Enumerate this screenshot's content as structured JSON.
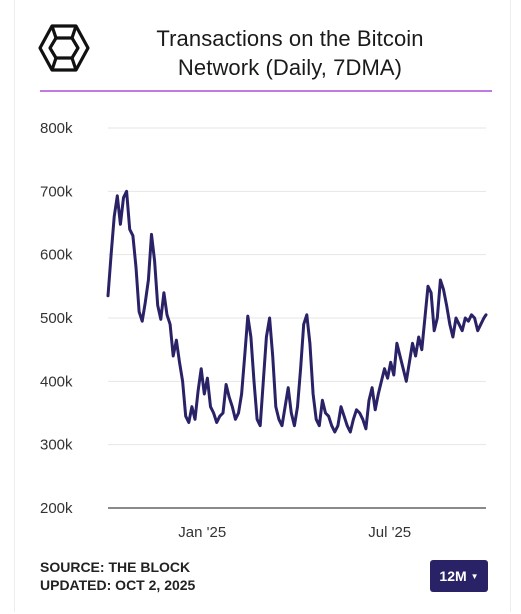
{
  "header": {
    "logo_icon": "the-block-cube-logo",
    "title_line1": "Transactions on the Bitcoin",
    "title_line2": "Network (Daily, 7DMA)"
  },
  "footer": {
    "source": "SOURCE: THE BLOCK",
    "updated": "UPDATED: OCT 2, 2025"
  },
  "range_selector": {
    "label": "12M",
    "caret_icon": "caret-down-icon"
  },
  "colors": {
    "line": "#2a2266",
    "accent": "#c07be0",
    "button": "#2a2266"
  },
  "chart_data": {
    "type": "line",
    "y_tick_labels": [
      "200k",
      "300k",
      "400k",
      "500k",
      "600k",
      "700k",
      "800k"
    ],
    "y_ticks": [
      200000,
      300000,
      400000,
      500000,
      600000,
      700000,
      800000
    ],
    "ylim": [
      200000,
      800000
    ],
    "x_tick_labels": [
      "Jan '25",
      "Jul '25"
    ],
    "x_tick_dates": [
      "2025-01-01",
      "2025-07-01"
    ],
    "xlim": [
      "2024-10-02",
      "2025-10-02"
    ],
    "grid": true,
    "series": [
      {
        "x": [
          "2024-10-02",
          "2024-10-05",
          "2024-10-08",
          "2024-10-11",
          "2024-10-14",
          "2024-10-17",
          "2024-10-20",
          "2024-10-23",
          "2024-10-26",
          "2024-10-29",
          "2024-11-01",
          "2024-11-04",
          "2024-11-07",
          "2024-11-10",
          "2024-11-13",
          "2024-11-16",
          "2024-11-19",
          "2024-11-22",
          "2024-11-25",
          "2024-11-28",
          "2024-12-01",
          "2024-12-04",
          "2024-12-07",
          "2024-12-10",
          "2024-12-13",
          "2024-12-16",
          "2024-12-19",
          "2024-12-22",
          "2024-12-25",
          "2024-12-28",
          "2024-12-31",
          "2025-01-03",
          "2025-01-06",
          "2025-01-09",
          "2025-01-12",
          "2025-01-15",
          "2025-01-18",
          "2025-01-21",
          "2025-01-24",
          "2025-01-27",
          "2025-01-30",
          "2025-02-02",
          "2025-02-05",
          "2025-02-08",
          "2025-02-11",
          "2025-02-14",
          "2025-02-17",
          "2025-02-20",
          "2025-02-23",
          "2025-02-26",
          "2025-03-01",
          "2025-03-04",
          "2025-03-07",
          "2025-03-10",
          "2025-03-13",
          "2025-03-16",
          "2025-03-19",
          "2025-03-22",
          "2025-03-25",
          "2025-03-28",
          "2025-03-31",
          "2025-04-03",
          "2025-04-06",
          "2025-04-09",
          "2025-04-12",
          "2025-04-15",
          "2025-04-18",
          "2025-04-21",
          "2025-04-24",
          "2025-04-27",
          "2025-04-30",
          "2025-05-03",
          "2025-05-06",
          "2025-05-09",
          "2025-05-12",
          "2025-05-15",
          "2025-05-18",
          "2025-05-21",
          "2025-05-24",
          "2025-05-27",
          "2025-05-30",
          "2025-06-02",
          "2025-06-05",
          "2025-06-08",
          "2025-06-11",
          "2025-06-14",
          "2025-06-17",
          "2025-06-20",
          "2025-06-23",
          "2025-06-26",
          "2025-06-29",
          "2025-07-02",
          "2025-07-05",
          "2025-07-08",
          "2025-07-11",
          "2025-07-14",
          "2025-07-17",
          "2025-07-20",
          "2025-07-23",
          "2025-07-26",
          "2025-07-29",
          "2025-08-01",
          "2025-08-04",
          "2025-08-07",
          "2025-08-10",
          "2025-08-13",
          "2025-08-16",
          "2025-08-19",
          "2025-08-22",
          "2025-08-25",
          "2025-08-28",
          "2025-08-31",
          "2025-09-03",
          "2025-09-06",
          "2025-09-09",
          "2025-09-12",
          "2025-09-15",
          "2025-09-18",
          "2025-09-21",
          "2025-09-24",
          "2025-09-27",
          "2025-09-30",
          "2025-10-02"
        ],
        "values": [
          535000,
          600000,
          660000,
          693000,
          648000,
          690000,
          700000,
          640000,
          630000,
          580000,
          510000,
          495000,
          525000,
          560000,
          632000,
          590000,
          520000,
          498000,
          540000,
          505000,
          490000,
          440000,
          465000,
          430000,
          400000,
          345000,
          335000,
          360000,
          340000,
          385000,
          420000,
          380000,
          405000,
          360000,
          350000,
          335000,
          345000,
          350000,
          395000,
          375000,
          360000,
          340000,
          350000,
          380000,
          440000,
          503000,
          470000,
          400000,
          340000,
          330000,
          400000,
          470000,
          500000,
          440000,
          360000,
          340000,
          330000,
          360000,
          390000,
          350000,
          330000,
          360000,
          420000,
          490000,
          505000,
          460000,
          380000,
          340000,
          330000,
          370000,
          350000,
          345000,
          330000,
          320000,
          330000,
          360000,
          345000,
          330000,
          320000,
          340000,
          355000,
          350000,
          340000,
          325000,
          370000,
          390000,
          355000,
          380000,
          400000,
          420000,
          405000,
          430000,
          410000,
          460000,
          440000,
          420000,
          400000,
          430000,
          460000,
          440000,
          470000,
          450000,
          500000,
          550000,
          540000,
          480000,
          500000,
          560000,
          545000,
          520000,
          490000,
          470000,
          500000,
          490000,
          480000,
          500000,
          495000,
          505000,
          500000,
          480000,
          490000,
          500000,
          505000
        ]
      }
    ]
  }
}
